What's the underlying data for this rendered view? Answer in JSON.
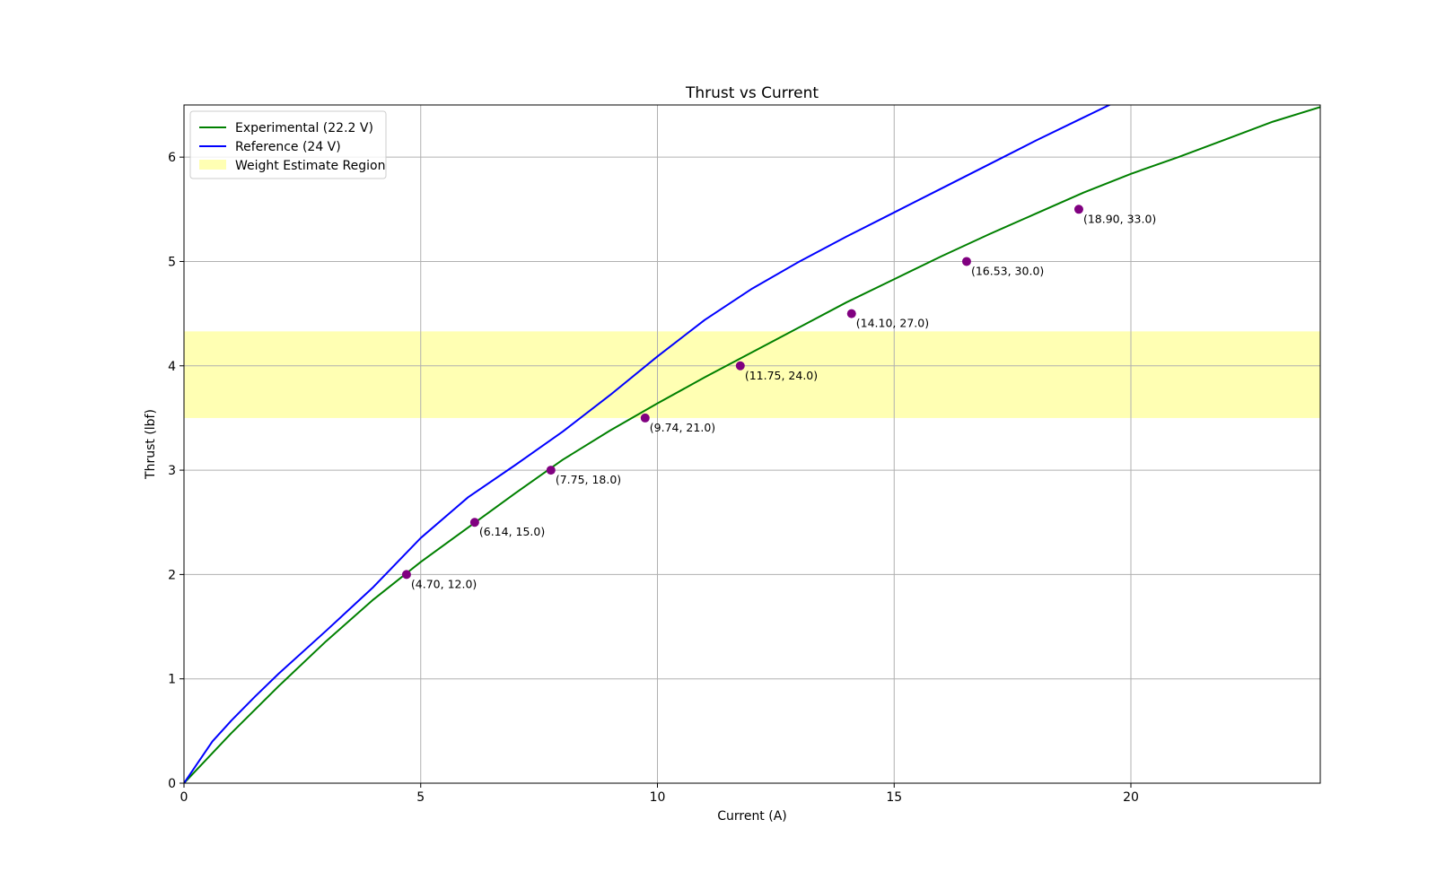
{
  "chart_data": {
    "type": "line",
    "title": "Thrust vs Current",
    "xlabel": "Current (A)",
    "ylabel": "Thrust (lbf)",
    "xlim": [
      0,
      24
    ],
    "ylim": [
      0,
      6.5
    ],
    "xticks": [
      0,
      5,
      10,
      15,
      20
    ],
    "yticks": [
      0,
      1,
      2,
      3,
      4,
      5,
      6
    ],
    "grid": true,
    "legend_position": "top-left",
    "series": [
      {
        "name": "Experimental (22.2 V)",
        "kind": "line",
        "color": "#008000",
        "x": [
          0,
          0.5,
          1,
          2,
          3,
          4,
          5,
          6,
          7,
          8,
          9,
          10,
          11,
          12,
          13,
          14,
          15,
          16,
          17,
          18,
          19,
          20,
          21,
          22,
          23,
          24
        ],
        "y": [
          0,
          0.24,
          0.48,
          0.93,
          1.36,
          1.76,
          2.12,
          2.45,
          2.78,
          3.1,
          3.38,
          3.64,
          3.89,
          4.13,
          4.37,
          4.61,
          4.83,
          5.05,
          5.26,
          5.46,
          5.66,
          5.84,
          6.0,
          6.17,
          6.34,
          6.48
        ]
      },
      {
        "name": "Reference (24 V)",
        "kind": "line",
        "color": "#0000ff",
        "x": [
          0,
          0.3,
          0.6,
          1,
          1.5,
          2,
          3,
          4,
          5,
          6,
          7,
          8,
          9,
          10,
          11,
          12,
          13,
          14,
          15,
          16,
          17,
          18,
          19,
          20,
          20.3
        ],
        "y": [
          0,
          0.2,
          0.4,
          0.6,
          0.83,
          1.05,
          1.46,
          1.88,
          2.35,
          2.74,
          3.05,
          3.37,
          3.72,
          4.09,
          4.44,
          4.74,
          5.0,
          5.24,
          5.47,
          5.7,
          5.93,
          6.16,
          6.38,
          6.6,
          6.65
        ]
      },
      {
        "name": "",
        "kind": "scatter",
        "color": "#800080",
        "x": [
          4.7,
          6.14,
          7.75,
          9.74,
          11.75,
          14.1,
          16.53,
          18.9
        ],
        "y": [
          2.0,
          2.5,
          3.0,
          3.5,
          4.0,
          4.5,
          5.0,
          5.5
        ],
        "labels": [
          "(4.70, 12.0)",
          "(6.14, 15.0)",
          "(7.75, 18.0)",
          "(9.74, 21.0)",
          "(11.75, 24.0)",
          "(14.10, 27.0)",
          "(16.53, 30.0)",
          "(18.90, 33.0)"
        ]
      }
    ],
    "band": {
      "name": "Weight Estimate Region",
      "y_from": 3.5,
      "y_to": 4.33,
      "color": "#ffff99"
    }
  }
}
